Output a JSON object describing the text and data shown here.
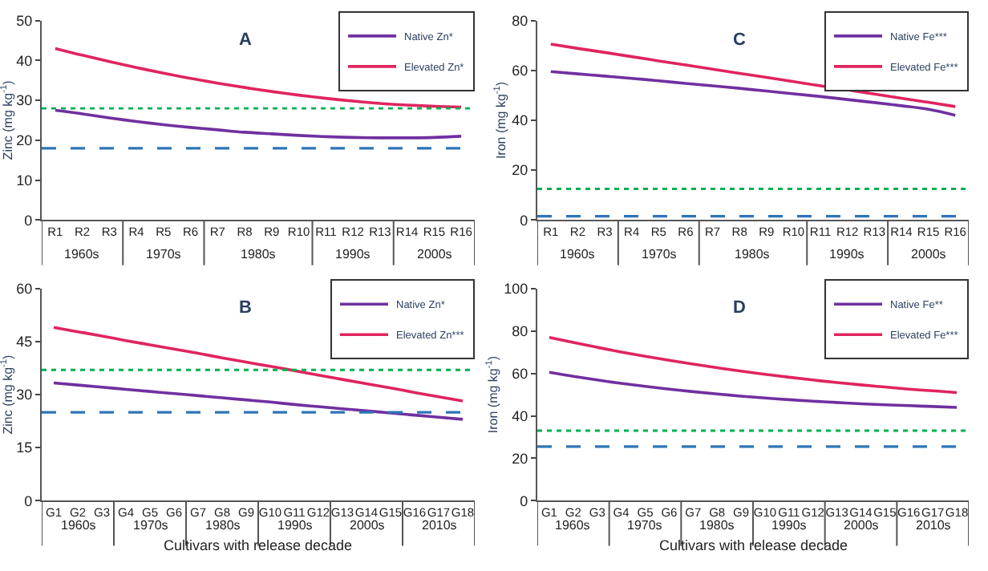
{
  "chart_data": [
    {
      "type": "line",
      "title": "A",
      "ylabel": "Zinc (mg kg$^{-1}$)",
      "categories": [
        "R1",
        "R2",
        "R3",
        "R4",
        "R5",
        "R6",
        "R7",
        "R8",
        "R9",
        "R10",
        "R11",
        "R12",
        "R13",
        "R14",
        "R15",
        "R16"
      ],
      "ylim": [
        0,
        50
      ],
      "yticks": [
        0,
        10,
        20,
        30,
        40,
        50
      ],
      "legend": "top right",
      "marker": "none",
      "series": [
        {
          "name": "Native Zn*",
          "color": "#7030a0",
          "values": [
            27.5,
            26.6,
            25.6,
            24.7,
            23.9,
            23.2,
            22.6,
            22.0,
            21.6,
            21.2,
            20.9,
            20.7,
            20.6,
            20.6,
            20.7,
            21.0
          ]
        },
        {
          "name": "Elevated Zn*",
          "color": "#e0245e",
          "values": [
            43.0,
            41.3,
            39.7,
            38.2,
            36.8,
            35.5,
            34.3,
            33.2,
            32.2,
            31.3,
            30.5,
            29.8,
            29.2,
            28.8,
            28.5,
            28.3
          ]
        }
      ],
      "ref_lines": [
        {
          "axis": "y",
          "value": 28,
          "color": "#00b050",
          "line_style": "dotted"
        },
        {
          "axis": "y",
          "value": 18,
          "color": "#2e75b6",
          "line_style": "dashed"
        }
      ],
      "annotations": [
        "1960s",
        "1970s",
        "1980s",
        "1990s",
        "2000s"
      ]
    },
    {
      "type": "line",
      "title": "C",
      "ylabel": "Iron (mg kg$^{-1}$)",
      "categories": [
        "R1",
        "R2",
        "R3",
        "R4",
        "R5",
        "R6",
        "R7",
        "R8",
        "R9",
        "R10",
        "R11",
        "R12",
        "R13",
        "R14",
        "R15",
        "R16"
      ],
      "ylim": [
        0,
        80
      ],
      "yticks": [
        0,
        20,
        40,
        60,
        80
      ],
      "legend": "top right",
      "marker": "none",
      "series": [
        {
          "name": "Native Fe***",
          "color": "#7030a0",
          "values": [
            59.5,
            58.6,
            57.7,
            56.8,
            55.8,
            54.8,
            53.8,
            52.8,
            51.7,
            50.6,
            49.5,
            48.3,
            47.1,
            45.8,
            44.4,
            42.0
          ]
        },
        {
          "name": "Elevated Fe***",
          "color": "#e0245e",
          "values": [
            70.5,
            68.8,
            67.2,
            65.5,
            63.8,
            62.2,
            60.5,
            58.8,
            57.2,
            55.5,
            53.8,
            52.2,
            50.5,
            48.8,
            47.2,
            45.5
          ]
        }
      ],
      "ref_lines": [
        {
          "axis": "y",
          "value": 12.5,
          "color": "#00b050",
          "line_style": "dotted"
        },
        {
          "axis": "y",
          "value": 1.5,
          "color": "#2e75b6",
          "line_style": "dashed"
        }
      ],
      "annotations": [
        "1960s",
        "1970s",
        "1980s",
        "1990s",
        "2000s"
      ]
    },
    {
      "type": "line",
      "title": "B",
      "xlabel": "Cultivars with release decade",
      "ylabel": "Zinc (mg kg$^{-1}$)",
      "categories": [
        "G1",
        "G2",
        "G3",
        "G4",
        "G5",
        "G6",
        "G7",
        "G8",
        "G9",
        "G10",
        "G11",
        "G12",
        "G13",
        "G14",
        "G15",
        "G16",
        "G17",
        "G18"
      ],
      "ylim": [
        0,
        60
      ],
      "yticks": [
        0,
        15,
        30,
        45,
        60
      ],
      "legend": "top right",
      "marker": "none",
      "series": [
        {
          "name": "Native Zn*",
          "color": "#7030a0",
          "values": [
            33.3,
            32.7,
            32.1,
            31.5,
            30.9,
            30.3,
            29.7,
            29.1,
            28.5,
            27.9,
            27.2,
            26.6,
            26.0,
            25.4,
            24.8,
            24.2,
            23.6,
            23.0
          ]
        },
        {
          "name": "Elevated Zn***",
          "color": "#e0245e",
          "values": [
            49.0,
            47.8,
            46.6,
            45.3,
            44.1,
            42.9,
            41.7,
            40.4,
            39.2,
            38.0,
            36.8,
            35.5,
            34.3,
            33.1,
            31.9,
            30.6,
            29.4,
            28.2
          ]
        }
      ],
      "ref_lines": [
        {
          "axis": "y",
          "value": 37,
          "color": "#00b050",
          "line_style": "dotted"
        },
        {
          "axis": "y",
          "value": 25,
          "color": "#2e75b6",
          "line_style": "dashed"
        }
      ],
      "annotations": [
        "1960s",
        "1970s",
        "1980s",
        "1990s",
        "2000s",
        "2010s"
      ]
    },
    {
      "type": "line",
      "title": "D",
      "xlabel": "Cultivars with release decade",
      "ylabel": "Iron (mg kg$^{-1}$)",
      "categories": [
        "G1",
        "G2",
        "G3",
        "G4",
        "G5",
        "G6",
        "G7",
        "G8",
        "G9",
        "G10",
        "G11",
        "G12",
        "G13",
        "G14",
        "G15",
        "G16",
        "G17",
        "G18"
      ],
      "ylim": [
        0,
        100
      ],
      "yticks": [
        0,
        20,
        40,
        60,
        80,
        100
      ],
      "legend": "top right",
      "marker": "none",
      "series": [
        {
          "name": "Native Fe**",
          "color": "#7030a0",
          "values": [
            60.5,
            58.6,
            56.9,
            55.3,
            53.9,
            52.6,
            51.4,
            50.3,
            49.3,
            48.4,
            47.6,
            46.9,
            46.3,
            45.7,
            45.2,
            44.8,
            44.4,
            44.0
          ]
        },
        {
          "name": "Elevated Fe***",
          "color": "#e0245e",
          "values": [
            77.0,
            74.6,
            72.3,
            70.1,
            68.1,
            66.2,
            64.4,
            62.7,
            61.1,
            59.6,
            58.2,
            56.9,
            55.7,
            54.6,
            53.6,
            52.6,
            51.8,
            51.0
          ]
        }
      ],
      "ref_lines": [
        {
          "axis": "y",
          "value": 33,
          "color": "#00b050",
          "line_style": "dotted"
        },
        {
          "axis": "y",
          "value": 25.5,
          "color": "#2e75b6",
          "line_style": "dashed"
        }
      ],
      "annotations": [
        "1960s",
        "1970s",
        "1980s",
        "1990s",
        "2000s",
        "2010s"
      ]
    }
  ]
}
